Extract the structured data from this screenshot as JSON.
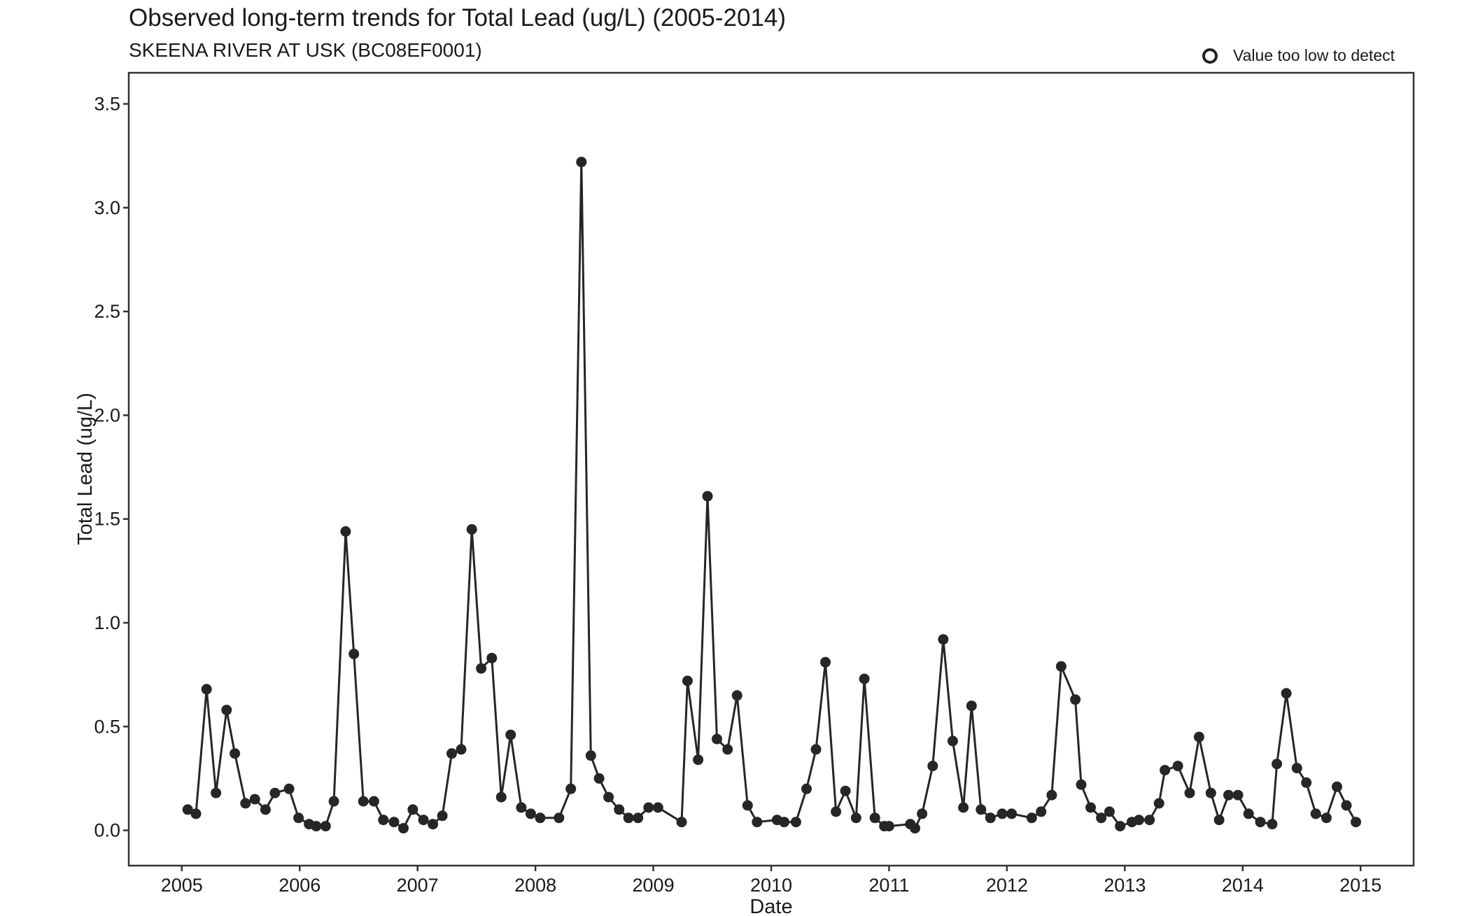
{
  "chart_data": {
    "type": "line",
    "title": "Observed long-term trends for Total Lead (ug/L) (2005-2014)",
    "subtitle": "SKEENA RIVER AT USK (BC08EF0001)",
    "xlabel": "Date",
    "ylabel": "Total Lead (ug/L)",
    "legend": {
      "label": "Value too low to detect",
      "placement": "top-right"
    },
    "xlim": [
      2004.55,
      2015.45
    ],
    "ylim": [
      -0.17,
      3.65
    ],
    "x_ticks": [
      "2005",
      "2006",
      "2007",
      "2008",
      "2009",
      "2010",
      "2011",
      "2012",
      "2013",
      "2014",
      "2015"
    ],
    "y_ticks": [
      "0.0",
      "0.5",
      "1.0",
      "1.5",
      "2.0",
      "2.5",
      "3.0",
      "3.5"
    ],
    "grid": false,
    "series": [
      {
        "marker": "filled-circle",
        "color": "#262626",
        "x": [
          2005.05,
          2005.12,
          2005.21,
          2005.29,
          2005.38,
          2005.45,
          2005.54,
          2005.62,
          2005.71,
          2005.79,
          2005.91,
          2005.99,
          2006.08,
          2006.14,
          2006.22,
          2006.29,
          2006.39,
          2006.46,
          2006.54,
          2006.63,
          2006.71,
          2006.8,
          2006.88,
          2006.96,
          2007.05,
          2007.13,
          2007.21,
          2007.29,
          2007.37,
          2007.46,
          2007.54,
          2007.63,
          2007.71,
          2007.79,
          2007.88,
          2007.96,
          2008.04,
          2008.2,
          2008.3,
          2008.39,
          2008.47,
          2008.54,
          2008.62,
          2008.71,
          2008.79,
          2008.87,
          2008.96,
          2009.04,
          2009.24,
          2009.29,
          2009.38,
          2009.46,
          2009.54,
          2009.63,
          2009.71,
          2009.8,
          2009.88,
          2010.05,
          2010.11,
          2010.21,
          2010.3,
          2010.38,
          2010.46,
          2010.55,
          2010.63,
          2010.72,
          2010.79,
          2010.88,
          2010.96,
          2011.0,
          2011.18,
          2011.22,
          2011.28,
          2011.37,
          2011.46,
          2011.54,
          2011.63,
          2011.7,
          2011.78,
          2011.86,
          2011.96,
          2012.04,
          2012.21,
          2012.29,
          2012.38,
          2012.46,
          2012.58,
          2012.63,
          2012.71,
          2012.8,
          2012.87,
          2012.96,
          2013.06,
          2013.12,
          2013.21,
          2013.29,
          2013.34,
          2013.45,
          2013.55,
          2013.63,
          2013.73,
          2013.8,
          2013.88,
          2013.96,
          2014.05,
          2014.15,
          2014.25,
          2014.29,
          2014.37,
          2014.46,
          2014.54,
          2014.62,
          2014.71,
          2014.8,
          2014.88,
          2014.96
        ],
        "y": [
          0.1,
          0.08,
          0.68,
          0.18,
          0.58,
          0.37,
          0.13,
          0.15,
          0.1,
          0.18,
          0.2,
          0.06,
          0.03,
          0.02,
          0.02,
          0.14,
          1.44,
          0.85,
          0.14,
          0.14,
          0.05,
          0.04,
          0.01,
          0.1,
          0.05,
          0.03,
          0.07,
          0.37,
          0.39,
          1.45,
          0.78,
          0.83,
          0.16,
          0.46,
          0.11,
          0.08,
          0.06,
          0.06,
          0.2,
          3.22,
          0.36,
          0.25,
          0.16,
          0.1,
          0.06,
          0.06,
          0.11,
          0.11,
          0.04,
          0.72,
          0.34,
          1.61,
          0.44,
          0.39,
          0.65,
          0.12,
          0.04,
          0.05,
          0.04,
          0.04,
          0.2,
          0.39,
          0.81,
          0.09,
          0.19,
          0.06,
          0.73,
          0.06,
          0.02,
          0.02,
          0.03,
          0.01,
          0.08,
          0.31,
          0.92,
          0.43,
          0.11,
          0.6,
          0.1,
          0.06,
          0.08,
          0.08,
          0.06,
          0.09,
          0.17,
          0.79,
          0.63,
          0.22,
          0.11,
          0.06,
          0.09,
          0.02,
          0.04,
          0.05,
          0.05,
          0.13,
          0.29,
          0.31,
          0.18,
          0.45,
          0.18,
          0.05,
          0.17,
          0.17,
          0.08,
          0.04,
          0.03,
          0.32,
          0.66,
          0.3,
          0.23,
          0.08,
          0.06,
          0.21,
          0.12,
          0.04
        ]
      }
    ]
  }
}
